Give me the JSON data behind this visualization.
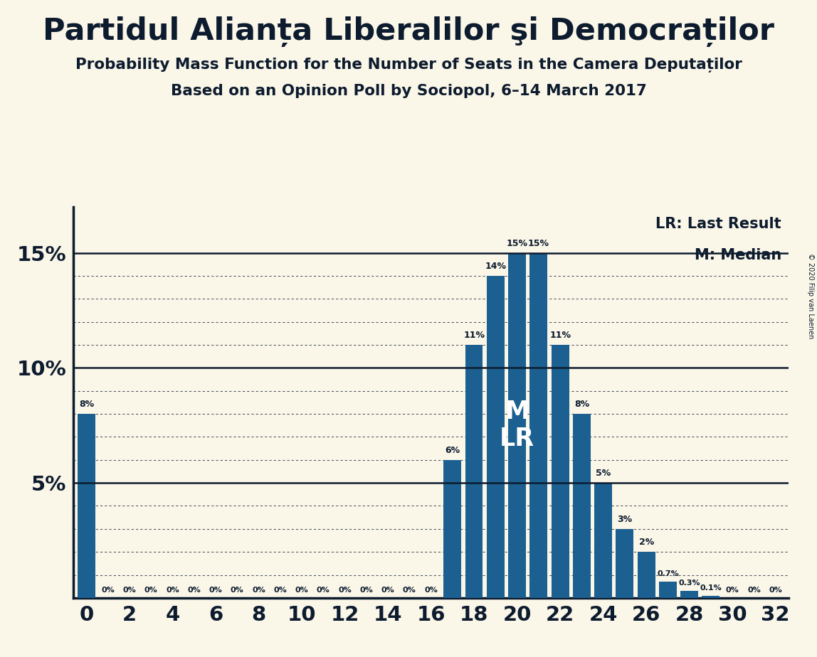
{
  "title_main": "Partidul Alianța Liberalilor şi Democraților",
  "title_sub1": "Probability Mass Function for the Number of Seats in the Camera Deputaților",
  "title_sub2": "Based on an Opinion Poll by Sociopol, 6–14 March 2017",
  "copyright": "© 2020 Filip van Laenen",
  "x_values": [
    0,
    1,
    2,
    3,
    4,
    5,
    6,
    7,
    8,
    9,
    10,
    11,
    12,
    13,
    14,
    15,
    16,
    17,
    18,
    19,
    20,
    21,
    22,
    23,
    24,
    25,
    26,
    27,
    28,
    29,
    30,
    31,
    32
  ],
  "y_values": [
    8,
    0,
    0,
    0,
    0,
    0,
    0,
    0,
    0,
    0,
    0,
    0,
    0,
    0,
    0,
    0,
    0,
    6,
    11,
    14,
    15,
    15,
    11,
    8,
    5,
    3,
    2,
    0.7,
    0.3,
    0.1,
    0,
    0,
    0
  ],
  "bar_color": "#1b6090",
  "background_color": "#faf6e8",
  "text_color": "#0d1b2e",
  "median_x": 20,
  "last_result_x": 20,
  "xlim": [
    -0.6,
    32.6
  ],
  "ylim": [
    0,
    17.0
  ],
  "legend_lr": "LR: Last Result",
  "legend_m": "M: Median",
  "bar_width": 0.82,
  "solid_hlines": [
    5,
    10,
    15
  ],
  "dot_hlines": [
    1,
    2,
    3,
    4,
    6,
    7,
    8,
    9,
    11,
    12,
    13,
    14
  ],
  "label_threshold": 0.05
}
